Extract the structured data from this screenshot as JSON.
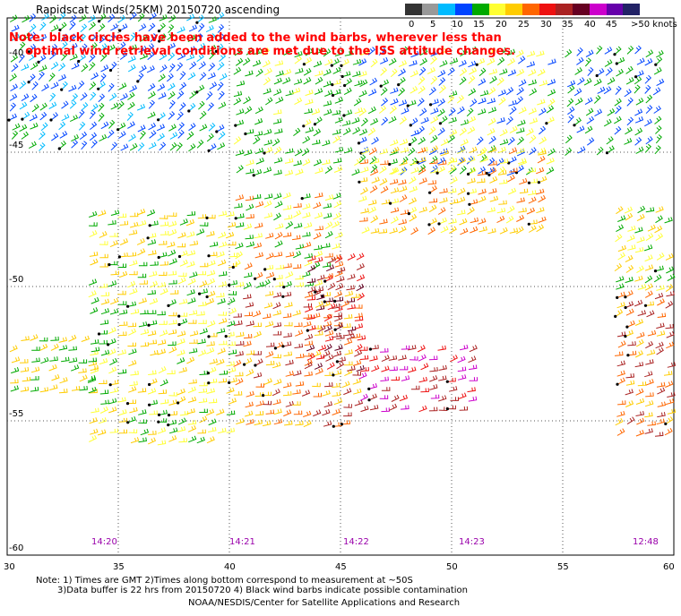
{
  "title": "Rapidscat Winds(25KM) 20150720 ascending",
  "note": {
    "line1": "Note: black circles have been added to the wind barbs, wherever less than",
    "line2": "optimal wind retrieval conditions are met due to the ISS attitude changes."
  },
  "colorbar": {
    "labels": [
      "0",
      "5",
      "10",
      "15",
      "20",
      "25",
      "30",
      "35",
      "40",
      "45",
      ">50 knots"
    ],
    "colors": [
      "#333333",
      "#999999",
      "#00bbff",
      "#0044ff",
      "#00aa00",
      "#ffff33",
      "#ffcc00",
      "#ff6600",
      "#ee1111",
      "#aa2222",
      "#660022",
      "#cc00cc",
      "#6600aa",
      "#222266"
    ]
  },
  "axes": {
    "lat_labels": [
      "-40",
      "-45",
      "-50",
      "-55",
      "-60"
    ],
    "lon_labels": [
      "30",
      "35",
      "40",
      "45",
      "50",
      "55",
      "60"
    ]
  },
  "pass_times": [
    "14:20",
    "14:21",
    "14:22",
    "14:23",
    "12:48"
  ],
  "footnotes": {
    "line1": "Note: 1) Times are GMT 2)Times along bottom correspond to measurement at ~50S",
    "line2": "3)Data buffer is 22 hrs from 20150720 4) Black wind barbs indicate possible contamination"
  },
  "credit": "NOAA/NESDIS/Center for Satellite Applications and Research"
}
